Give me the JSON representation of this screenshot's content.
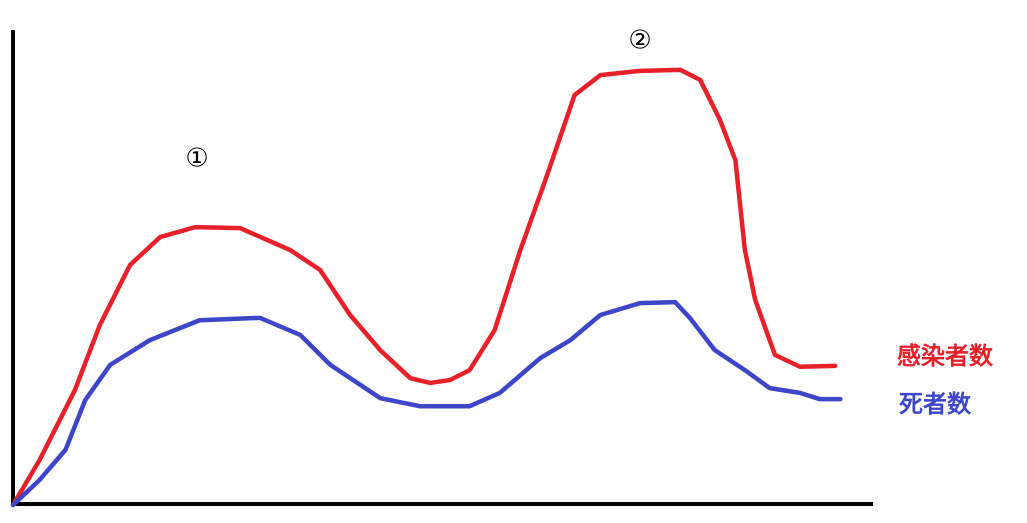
{
  "chart_data": {
    "type": "line",
    "annotations": [
      "①",
      "②"
    ],
    "xlim": [
      0,
      100
    ],
    "ylim": [
      0,
      100
    ],
    "series": [
      {
        "name": "感染者数",
        "color": "#e8202a",
        "x": [
          0,
          3.1,
          7.2,
          10.1,
          13.6,
          17.1,
          21.2,
          26.4,
          32.2,
          35.7,
          39.2,
          42.7,
          46.2,
          48.5,
          50.8,
          53.1,
          56,
          59,
          61.9,
          65.3,
          68.3,
          72.9,
          77.6,
          79.9,
          82.2,
          84,
          85.1,
          86.3,
          88.6,
          91.5,
          95.6
        ],
        "values": [
          0,
          9.5,
          24.2,
          37.9,
          50.5,
          56.4,
          58.5,
          58.3,
          53.7,
          49.5,
          40,
          32.6,
          26.7,
          25.7,
          26.3,
          28.4,
          36.8,
          53.7,
          68.4,
          86.3,
          90.5,
          91.4,
          91.6,
          89.5,
          81.1,
          72.6,
          53.7,
          43.2,
          31.6,
          29.1,
          29.3
        ]
      },
      {
        "name": "死者数",
        "color": "#3d45c8",
        "x": [
          0,
          3.1,
          6.1,
          8.4,
          11.3,
          15.9,
          21.7,
          28.7,
          33.4,
          36.9,
          42.7,
          47.3,
          53.1,
          56.6,
          61.3,
          64.8,
          68.3,
          72.9,
          77,
          78.7,
          81.6,
          85.1,
          88,
          91.5,
          93.8,
          96.2
        ],
        "values": [
          0,
          5.3,
          11.6,
          22.1,
          29.5,
          34.7,
          38.9,
          39.4,
          35.8,
          29.5,
          22.5,
          20.8,
          20.8,
          23.6,
          30.9,
          34.7,
          40,
          42.5,
          42.7,
          39.4,
          32.6,
          28.4,
          24.6,
          23.6,
          22.3,
          22.3
        ]
      }
    ]
  }
}
